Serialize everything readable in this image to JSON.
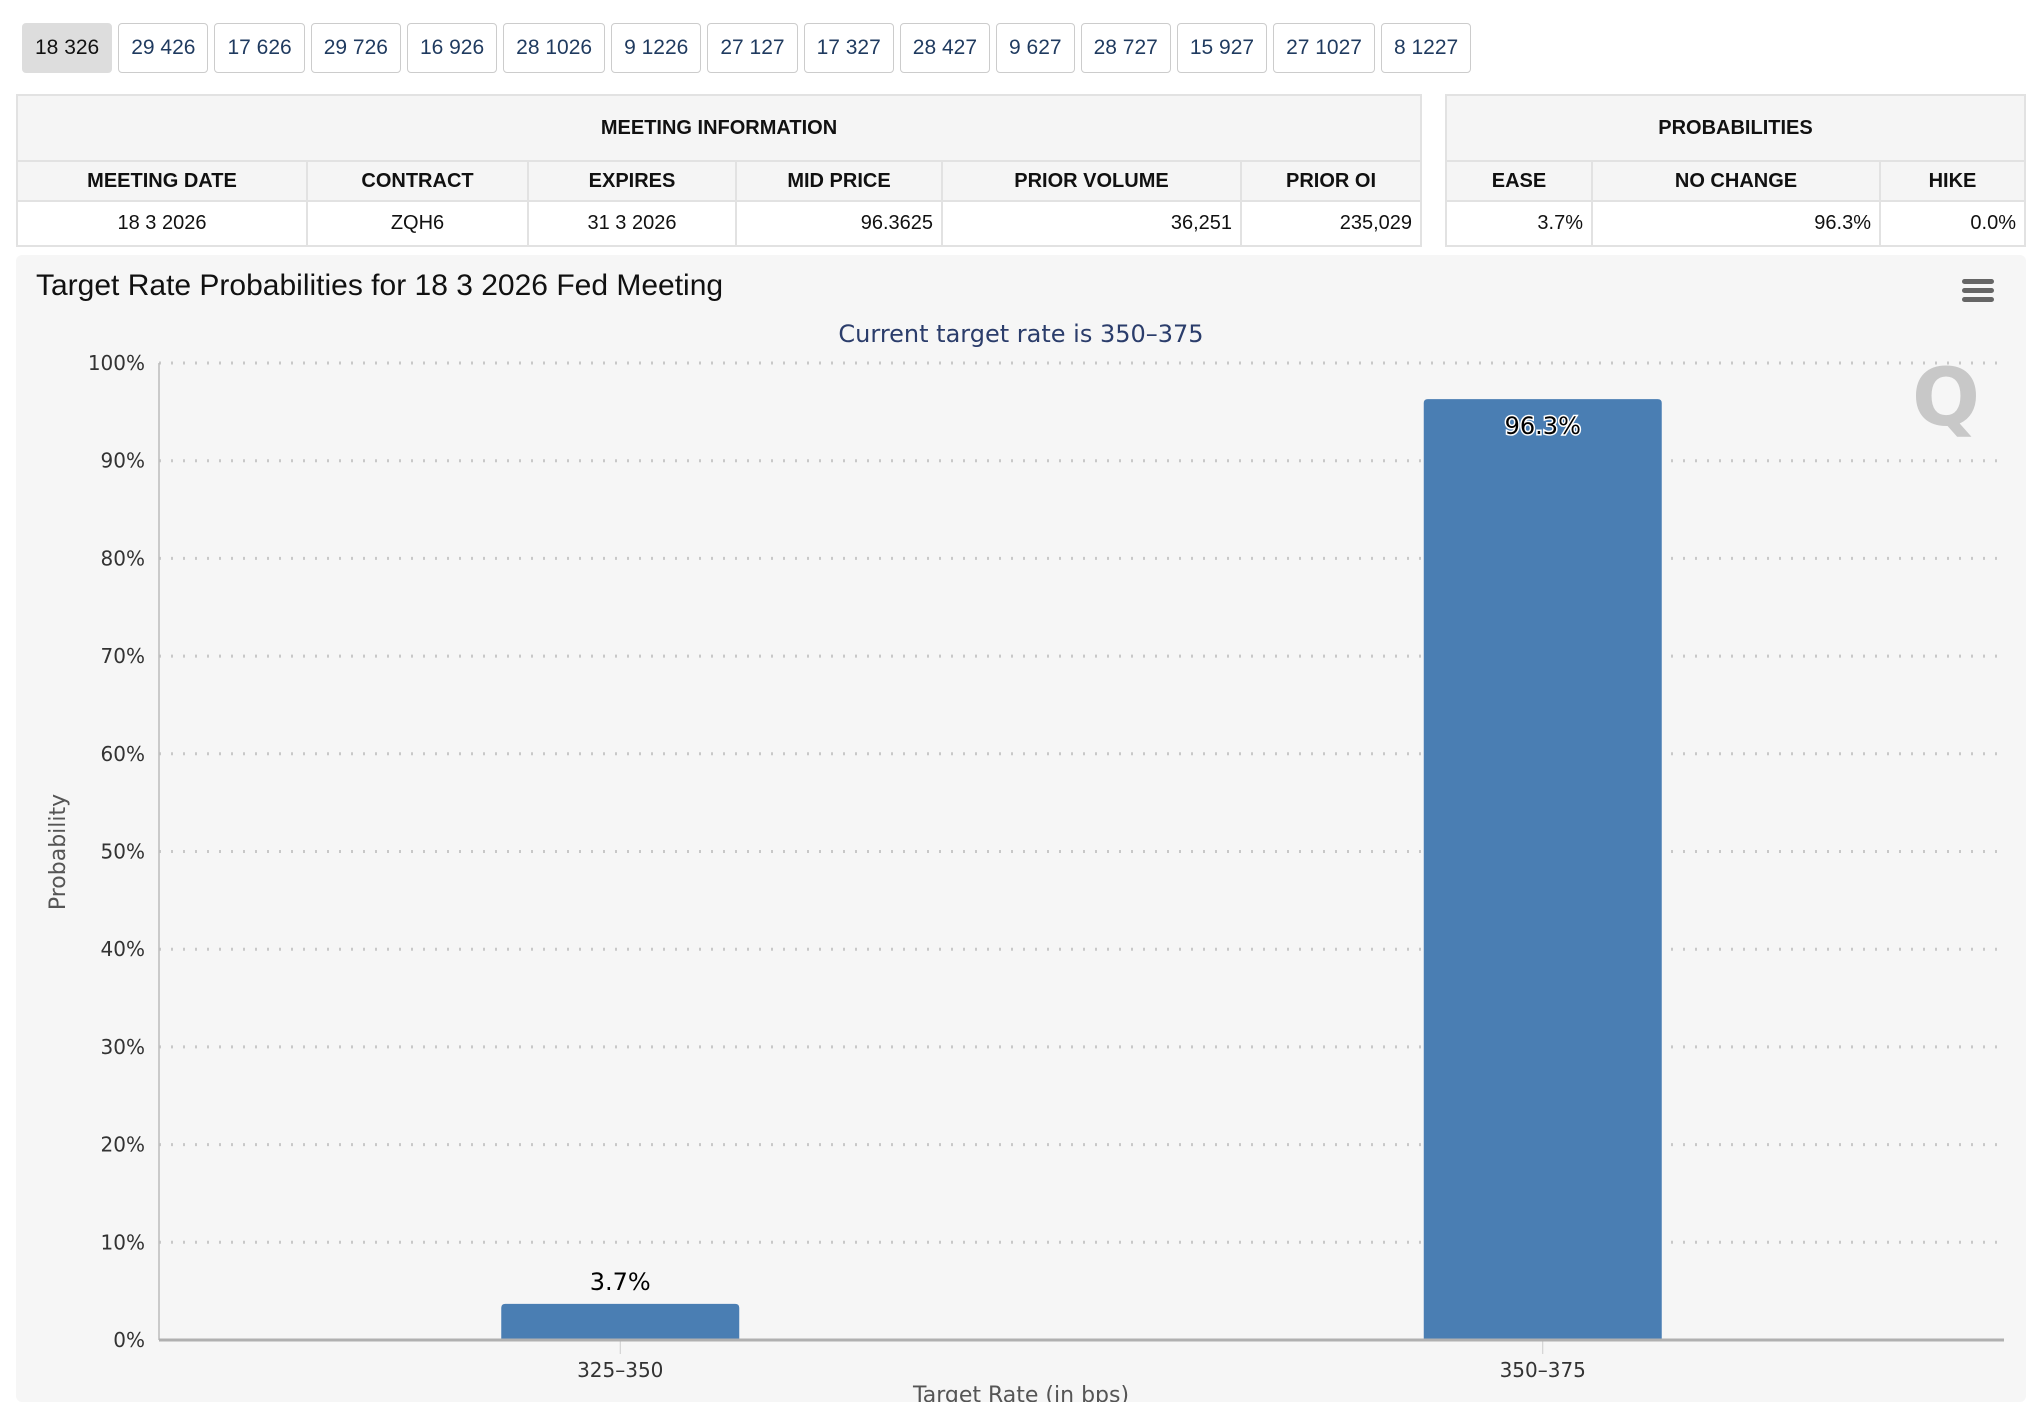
{
  "tabs": [
    "18 326",
    "29 426",
    "17 626",
    "29 726",
    "16 926",
    "28 1026",
    "9 1226",
    "27 127",
    "17 327",
    "28 427",
    "9 627",
    "28 727",
    "15 927",
    "27 1027",
    "8 1227"
  ],
  "active_tab": 0,
  "meeting": {
    "title": "MEETING INFORMATION",
    "headers": [
      "MEETING DATE",
      "CONTRACT",
      "EXPIRES",
      "MID PRICE",
      "PRIOR VOLUME",
      "PRIOR OI"
    ],
    "values": [
      "18 3 2026",
      "ZQH6",
      "31 3 2026",
      "96.3625",
      "36,251",
      "235,029"
    ]
  },
  "probabilities": {
    "title": "PROBABILITIES",
    "headers": [
      "EASE",
      "NO CHANGE",
      "HIKE"
    ],
    "values": [
      "3.7%",
      "96.3%",
      "0.0%"
    ]
  },
  "chart_data": {
    "type": "bar",
    "title": "Target Rate Probabilities for 18 3 2026 Fed Meeting",
    "subtitle": "Current target rate is 350–375",
    "categories": [
      "325–350",
      "350–375"
    ],
    "values": [
      3.7,
      96.3
    ],
    "data_labels": [
      "3.7%",
      "96.3%"
    ],
    "xlabel": "Target Rate (in bps)",
    "ylabel": "Probability",
    "ylim": [
      0,
      100
    ],
    "yticks": [
      "0%",
      "10%",
      "20%",
      "30%",
      "40%",
      "50%",
      "60%",
      "70%",
      "80%",
      "90%",
      "100%"
    ],
    "grid": true,
    "bar_color": "#4a7eb3",
    "menu_icon": "hamburger-menu-icon",
    "watermark": "Q"
  }
}
